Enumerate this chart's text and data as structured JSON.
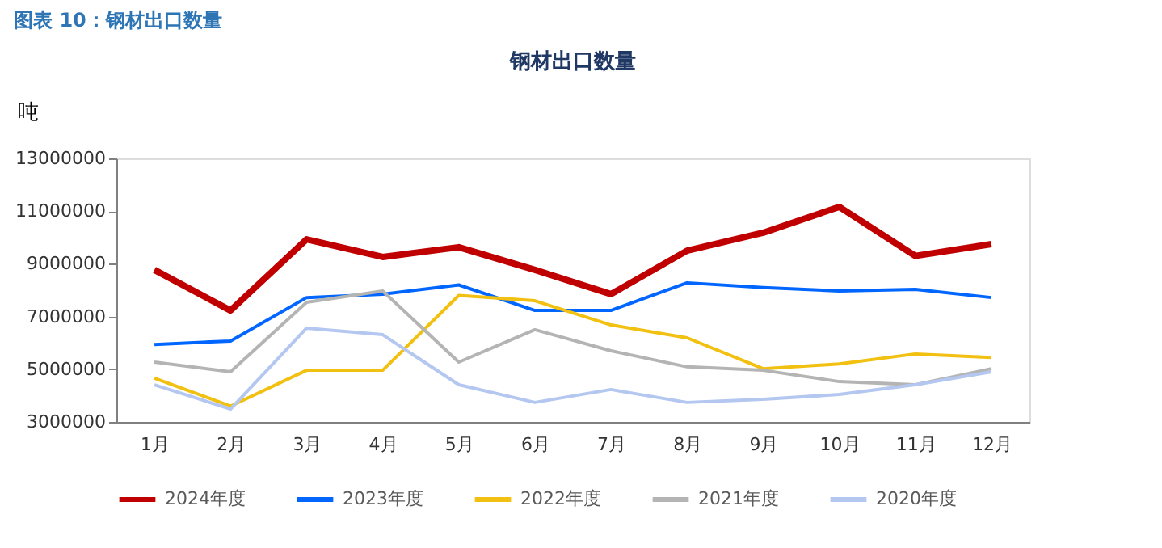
{
  "chart_data": {
    "type": "line",
    "title": "图表 10：钢材出口数量",
    "subtitle": "钢材出口数量",
    "ylabel": "吨",
    "categories": [
      "1月",
      "2月",
      "3月",
      "4月",
      "5月",
      "6月",
      "7月",
      "8月",
      "9月",
      "10月",
      "11月",
      "12月"
    ],
    "series": [
      {
        "name": "2024年度",
        "color": "#c00000",
        "values": [
          8770000,
          7230000,
          9930000,
          9260000,
          9630000,
          8770000,
          7850000,
          9500000,
          10180000,
          11160000,
          9300000,
          9750000
        ]
      },
      {
        "name": "2023年度",
        "color": "#0066ff",
        "values": [
          5940000,
          6070000,
          7720000,
          7850000,
          8200000,
          7230000,
          7230000,
          8280000,
          8100000,
          7970000,
          8030000,
          7720000
        ]
      },
      {
        "name": "2022年度",
        "color": "#f2c010",
        "values": [
          4660000,
          3600000,
          4960000,
          4960000,
          7800000,
          7600000,
          6680000,
          6190000,
          5020000,
          5200000,
          5580000,
          5450000
        ]
      },
      {
        "name": "2021年度",
        "color": "#b4b4b4",
        "values": [
          5270000,
          4900000,
          7540000,
          7970000,
          5270000,
          6500000,
          5700000,
          5090000,
          4960000,
          4530000,
          4410000,
          5020000
        ]
      },
      {
        "name": "2020年度",
        "color": "#b4c7f0",
        "values": [
          4410000,
          3490000,
          6560000,
          6310000,
          4410000,
          3740000,
          4230000,
          3740000,
          3860000,
          4040000,
          4410000,
          4900000
        ]
      }
    ],
    "ylim": [
      3000000,
      13000000
    ],
    "yticks": [
      3000000,
      5000000,
      7000000,
      9000000,
      11000000,
      13000000
    ],
    "grid": false,
    "legend": "bottom",
    "marker": "none",
    "line_style": "solid"
  }
}
